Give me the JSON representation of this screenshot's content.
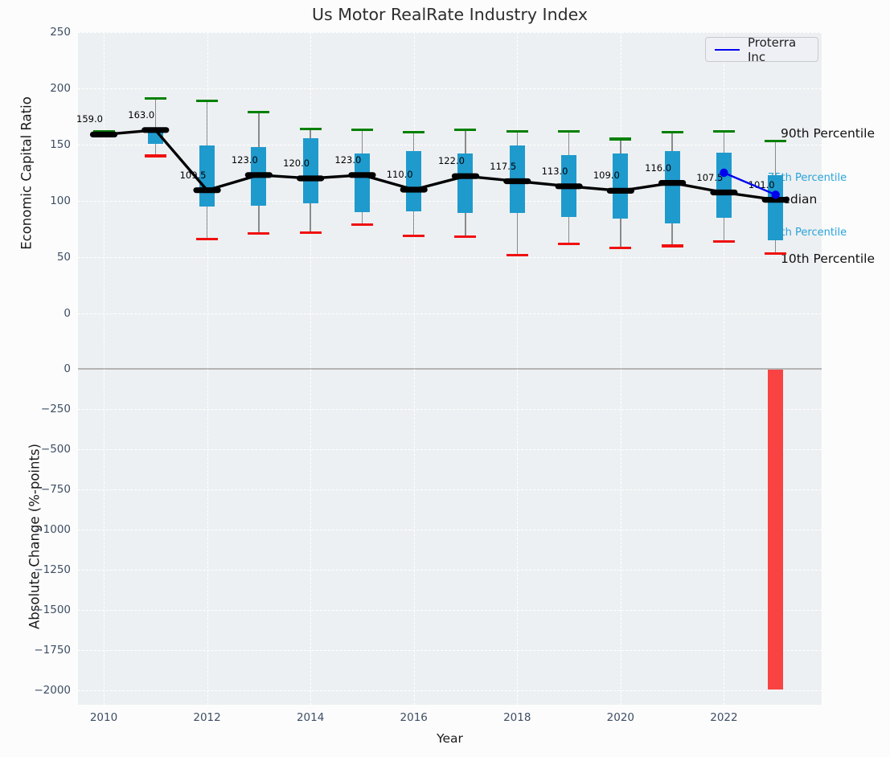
{
  "colors": {
    "box": "#1f9acd",
    "whisker": "#8a8a8a",
    "cap_90th": "#008000",
    "cap_10th": "#f01010",
    "median_marker": "#000000",
    "proterra_line": "#0000ee",
    "change_bar": "#f94343",
    "axes_background": "#edf0f2",
    "figure_background": "#fcfcfd",
    "grid": "#ffffff",
    "tick_text": "#3d4e63",
    "annotation_cyan": "#29a3d9"
  },
  "chart_data": [
    {
      "type": "boxplot",
      "title": "Us Motor RealRate Industry Index",
      "ylabel": "Economic Capital Ratio",
      "ylim": [
        -35,
        250
      ],
      "yticks": [
        250,
        200,
        150,
        100,
        50,
        0
      ],
      "xticks": [
        2010,
        2012,
        2014,
        2016,
        2018,
        2020,
        2022
      ],
      "grid": true,
      "legend": {
        "label": "Proterra Inc",
        "position": "upper right"
      },
      "annotations": {
        "p90": "90th Percentile",
        "p75": "75th Percentile",
        "median": "Median",
        "p25": "25th Percentile",
        "p10": "10th Percentile"
      },
      "years": [
        {
          "year": 2010,
          "p10": 158,
          "p25": 158,
          "median": 159.0,
          "p75": 160,
          "p90": 162,
          "median_label": "159.0"
        },
        {
          "year": 2011,
          "p10": 140,
          "p25": 151,
          "median": 163.0,
          "p75": 162,
          "p90": 191,
          "median_label": "163.0"
        },
        {
          "year": 2012,
          "p10": 66,
          "p25": 95,
          "median": 109.5,
          "p75": 149,
          "p90": 189,
          "median_label": "109.5"
        },
        {
          "year": 2013,
          "p10": 71,
          "p25": 96,
          "median": 123.0,
          "p75": 148,
          "p90": 179,
          "median_label": "123.0"
        },
        {
          "year": 2014,
          "p10": 72,
          "p25": 98,
          "median": 120.0,
          "p75": 156,
          "p90": 164,
          "median_label": "120.0"
        },
        {
          "year": 2015,
          "p10": 79,
          "p25": 90,
          "median": 123.0,
          "p75": 142,
          "p90": 163,
          "median_label": "123.0"
        },
        {
          "year": 2016,
          "p10": 69,
          "p25": 91,
          "median": 110.0,
          "p75": 144,
          "p90": 161,
          "median_label": "110.0"
        },
        {
          "year": 2017,
          "p10": 68,
          "p25": 89,
          "median": 122.0,
          "p75": 142,
          "p90": 163,
          "median_label": "122.0"
        },
        {
          "year": 2018,
          "p10": 52,
          "p25": 89,
          "median": 117.5,
          "p75": 149,
          "p90": 162,
          "median_label": "117.5"
        },
        {
          "year": 2019,
          "p10": 62,
          "p25": 86,
          "median": 113.0,
          "p75": 141,
          "p90": 162,
          "median_label": "113.0"
        },
        {
          "year": 2020,
          "p10": 58,
          "p25": 84,
          "median": 109.0,
          "p75": 142,
          "p90": 155,
          "median_label": "109.0"
        },
        {
          "year": 2021,
          "p10": 60,
          "p25": 80,
          "median": 116.0,
          "p75": 144,
          "p90": 161,
          "median_label": "116.0"
        },
        {
          "year": 2022,
          "p10": 64,
          "p25": 85,
          "median": 107.5,
          "p75": 143,
          "p90": 162,
          "median_label": "107.5"
        },
        {
          "year": 2023,
          "p10": 53,
          "p25": 65,
          "median": 101.0,
          "p75": 123,
          "p90": 153,
          "median_label": "101.0"
        }
      ],
      "overlay_series": {
        "name": "Proterra Inc",
        "points": [
          {
            "year": 2022,
            "value": 125
          },
          {
            "year": 2023,
            "value": 105.5
          }
        ]
      }
    },
    {
      "type": "bar",
      "ylabel": "Absolute Change (%-points)",
      "xlabel": "Year",
      "ylim": [
        -2090,
        60
      ],
      "yticks": [
        0,
        -250,
        -500,
        -750,
        -1000,
        -1250,
        -1500,
        -1750,
        -2000
      ],
      "xticks": [
        2010,
        2012,
        2014,
        2016,
        2018,
        2020,
        2022
      ],
      "grid": true,
      "zero_line": true,
      "bars": [
        {
          "year": 2023,
          "value": -1995
        }
      ]
    }
  ]
}
